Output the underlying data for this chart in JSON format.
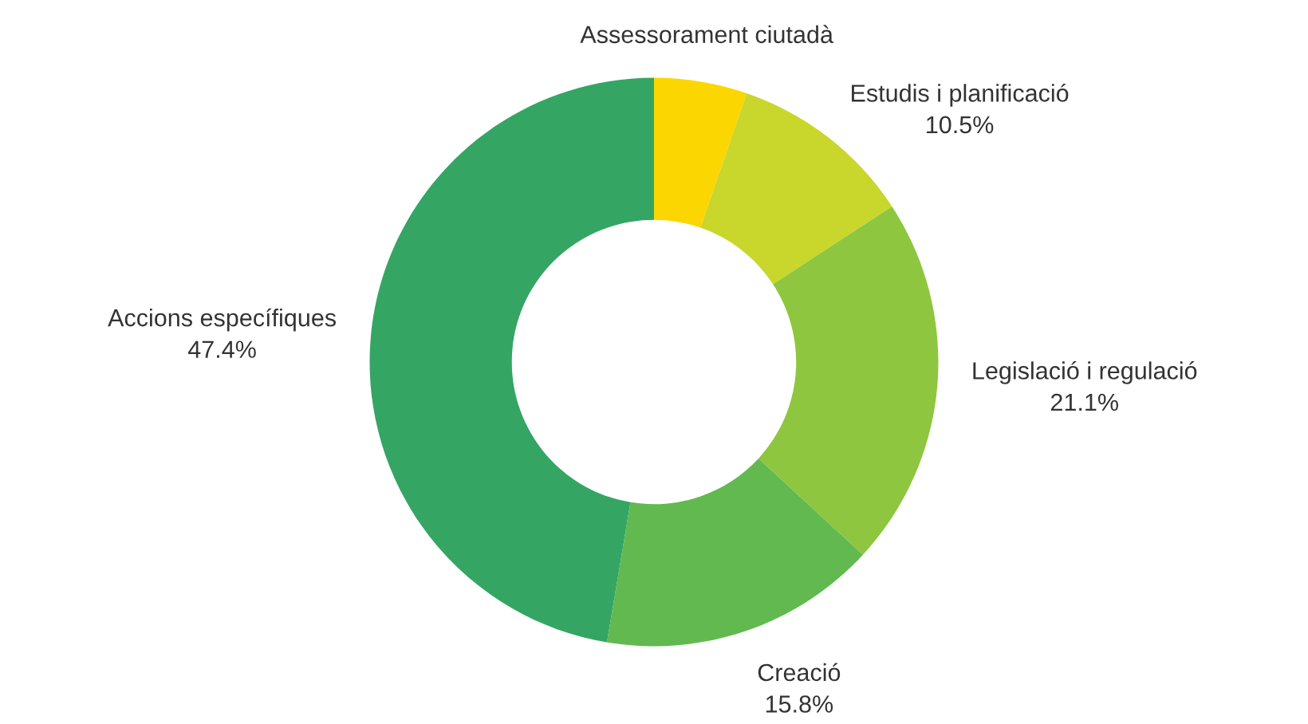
{
  "chart_data": {
    "type": "donut",
    "categories": [
      "Assessorament ciutadà",
      "Estudis i planificació",
      "Legislació i regulació",
      "Creació",
      "Accions específiques"
    ],
    "values": [
      5.3,
      10.5,
      21.1,
      15.8,
      47.4
    ],
    "colors": [
      "#fcd600",
      "#c9d62b",
      "#8ec63f",
      "#62b950",
      "#35a564"
    ],
    "value_labels": [
      null,
      "10.5%",
      "21.1%",
      "15.8%",
      "47.4%"
    ],
    "legend": false
  }
}
